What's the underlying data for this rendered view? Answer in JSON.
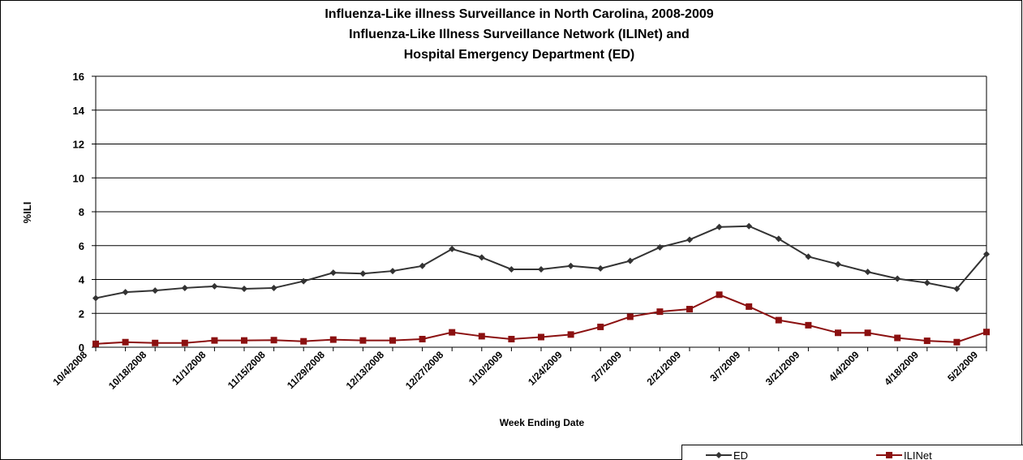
{
  "chart_data": {
    "type": "line",
    "title": [
      "Influenza-Like illness Surveillance in North Carolina, 2008-2009",
      "Influenza-Like Illness Surveillance Network (ILINet) and",
      "Hospital Emergency Department (ED)"
    ],
    "ylabel": "%ILI",
    "xlabel": "Week Ending Date",
    "categories": [
      "10/4/2008",
      null,
      "10/18/2008",
      null,
      "11/1/2008",
      null,
      "11/15/2008",
      null,
      "11/29/2008",
      null,
      "12/13/2008",
      null,
      "12/27/2008",
      null,
      "1/10/2009",
      null,
      "1/24/2009",
      null,
      "2/7/2009",
      null,
      "2/21/2009",
      null,
      "3/7/2009",
      null,
      "3/21/2009",
      null,
      "4/4/2009",
      null,
      "4/18/2009",
      null,
      "5/2/2009"
    ],
    "series": [
      {
        "name": "ED",
        "color": "#333333",
        "marker": "diamond",
        "values": [
          2.9,
          3.25,
          3.35,
          3.5,
          3.6,
          3.45,
          3.5,
          3.9,
          4.4,
          4.35,
          4.5,
          4.8,
          5.8,
          5.3,
          4.6,
          4.6,
          4.8,
          4.65,
          5.1,
          5.9,
          6.35,
          7.1,
          7.15,
          6.4,
          5.35,
          4.9,
          4.45,
          4.05,
          3.8,
          3.45,
          5.5
        ]
      },
      {
        "name": "ILINet",
        "color": "#8b1010",
        "marker": "square",
        "values": [
          0.2,
          0.3,
          0.25,
          0.25,
          0.4,
          0.4,
          0.42,
          0.35,
          0.45,
          0.4,
          0.4,
          0.48,
          0.88,
          0.65,
          0.48,
          0.6,
          0.75,
          1.2,
          1.8,
          2.1,
          2.25,
          3.1,
          2.4,
          1.6,
          1.3,
          0.85,
          0.85,
          0.55,
          0.38,
          0.3,
          0.9
        ]
      }
    ],
    "ylim": [
      0,
      16
    ],
    "yticks": [
      0,
      2,
      4,
      6,
      8,
      10,
      12,
      14,
      16
    ],
    "grid": true,
    "legend": "bottom-right"
  }
}
